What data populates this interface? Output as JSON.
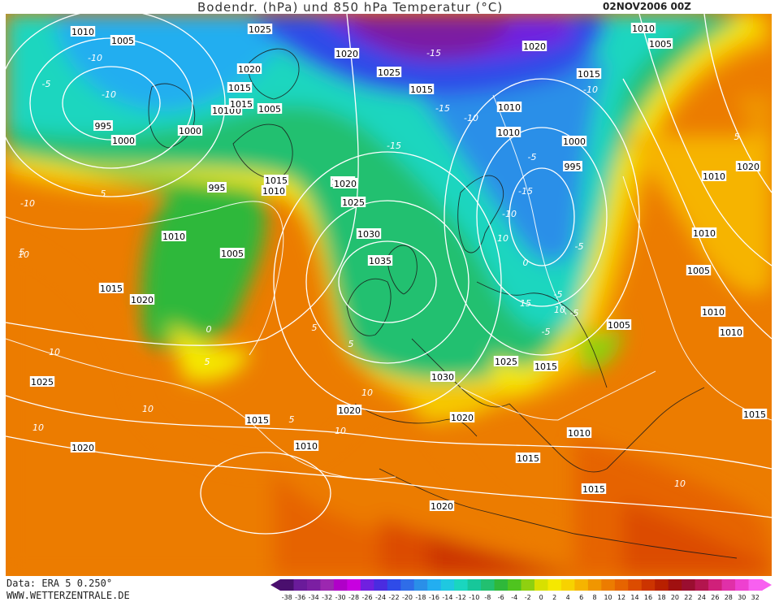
{
  "header": {
    "title": "Bodendr. (hPa) und 850 hPa Temperatur (°C)",
    "datestamp": "02NOV2006 00Z"
  },
  "footer": {
    "dataset": "Data: ERA 5 0.250°",
    "website": "WWW.WETTERZENTRALE.DE"
  },
  "colorbar": {
    "labels": [
      "-38",
      "-36",
      "-34",
      "-32",
      "-30",
      "-28",
      "-26",
      "-24",
      "-22",
      "-20",
      "-18",
      "-16",
      "-14",
      "-12",
      "-10",
      "-8",
      "-6",
      "-4",
      "-2",
      "0",
      "2",
      "4",
      "6",
      "8",
      "10",
      "12",
      "14",
      "16",
      "18",
      "20",
      "22",
      "24",
      "26",
      "28",
      "30",
      "32"
    ],
    "colors": [
      "#4a0f6e",
      "#6a1b9a",
      "#7b1fa2",
      "#9c27b0",
      "#b000c8",
      "#c800e0",
      "#7020e0",
      "#4a2ce0",
      "#2f4be8",
      "#2f6de8",
      "#2a8fe8",
      "#23aef0",
      "#1fc8e0",
      "#1ad6bf",
      "#17c79a",
      "#22c070",
      "#2fb83a",
      "#4fc41f",
      "#8fd010",
      "#d8e000",
      "#f5e800",
      "#f7d200",
      "#f6b400",
      "#f09600",
      "#ec7c00",
      "#e66400",
      "#dc4c00",
      "#cc3400",
      "#b82000",
      "#a01010",
      "#9a0e30",
      "#b3154e",
      "#d0207a",
      "#e030a8",
      "#ee40d0",
      "#f860f0"
    ]
  },
  "isobar_labels": [
    "1010",
    "1005",
    "1025",
    "1020",
    "1015",
    "1010",
    "1005",
    "1020",
    "1010",
    "1015",
    "1025",
    "1020",
    "1015",
    "1010",
    "995",
    "1000",
    "1000",
    "1020",
    "1015",
    "1010",
    "1010",
    "1005",
    "1000",
    "1015",
    "1020",
    "1010",
    "995",
    "995",
    "1020",
    "1025",
    "1010",
    "1005",
    "1030",
    "1035",
    "1015",
    "1020",
    "1010",
    "1005",
    "1025",
    "1030",
    "1010",
    "1015",
    "1005",
    "1010",
    "1010",
    "1025",
    "1020",
    "1015",
    "1010",
    "1020",
    "1020",
    "1010",
    "1015",
    "1015",
    "1020",
    "1015"
  ],
  "temperature_labels": [
    "-10",
    "-5",
    "-10",
    "-15",
    "-15",
    "-15",
    "-10",
    "-15",
    "-10",
    "-5",
    "0",
    "5",
    "-10",
    "5",
    "10",
    "10",
    "10",
    "5",
    "5",
    "5",
    "10",
    "5",
    "10",
    "10",
    "0",
    "10",
    "15",
    "10",
    "-5",
    "-10",
    "-5",
    "-5",
    "-5",
    "5",
    "10"
  ]
}
